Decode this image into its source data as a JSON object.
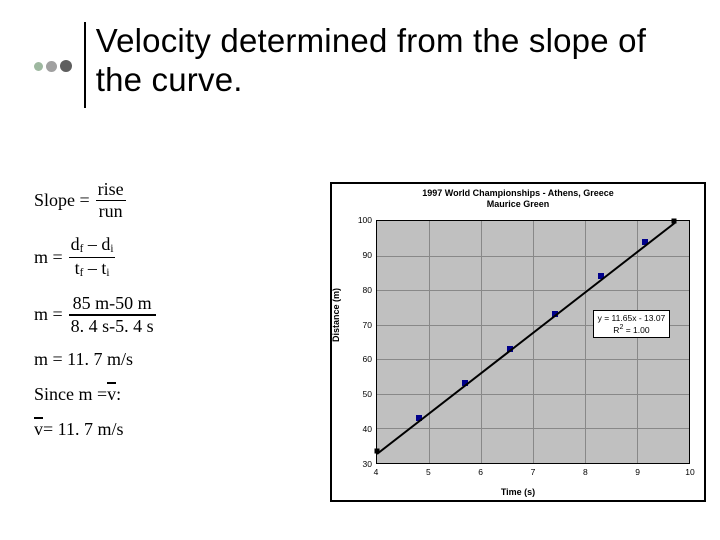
{
  "title": "Velocity determined from the slope of the curve.",
  "formulas": {
    "slope_lhs": "Slope =",
    "slope_num": "rise",
    "slope_den": "run",
    "m1_lhs": "m =",
    "m1_num_a": "d",
    "m1_num_suba": "f",
    "m1_num_sep": " – ",
    "m1_num_b": "d",
    "m1_num_subb": "i",
    "m1_den_a": "t",
    "m1_den_suba": "f",
    "m1_den_sep": " – ",
    "m1_den_b": "t",
    "m1_den_subb": "i",
    "m2_lhs": "m =",
    "m2_num": "85 m-50 m",
    "m2_den": "8. 4 s-5. 4 s",
    "m3": "m = 11. 7 m/s",
    "since_a": "Since m = ",
    "since_b": "v",
    "since_c": ":",
    "vfinal_a": "v",
    "vfinal_b": " = 11. 7 m/s"
  },
  "chart": {
    "title1": "1997 World Championships - Athens, Greece",
    "title2": "Maurice Green",
    "ylabel": "Distance (m)",
    "xlabel": "Time (s)",
    "xlim": [
      4,
      10
    ],
    "ylim": [
      30,
      100
    ],
    "xticks": [
      4,
      5,
      6,
      7,
      8,
      9,
      10
    ],
    "yticks": [
      30,
      40,
      50,
      60,
      70,
      80,
      90,
      100
    ],
    "fit_eq": "y = 11.65x - 13.07",
    "fit_r2_a": "R",
    "fit_r2_b": "2",
    "fit_r2_c": " = 1.00",
    "bg_color": "#c0c0c0",
    "grid_color": "#888888",
    "point_color": "#00008b",
    "points": [
      {
        "x": 4.8,
        "y": 43
      },
      {
        "x": 5.7,
        "y": 53
      },
      {
        "x": 6.55,
        "y": 63
      },
      {
        "x": 7.42,
        "y": 73
      },
      {
        "x": 8.3,
        "y": 84
      },
      {
        "x": 9.15,
        "y": 94
      },
      {
        "x": 9.85,
        "y": 102
      }
    ]
  }
}
